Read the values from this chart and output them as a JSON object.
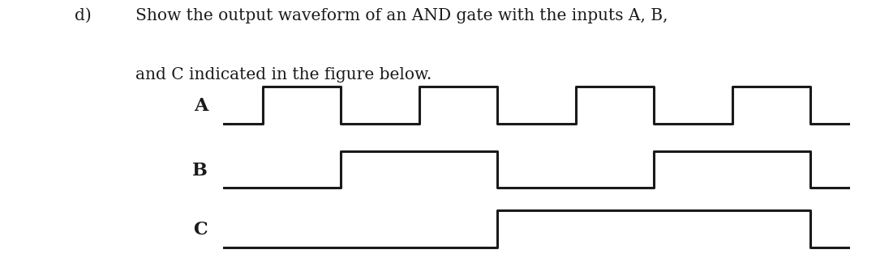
{
  "waveforms": {
    "A": {
      "times": [
        0,
        1,
        1,
        3,
        3,
        5,
        5,
        7,
        7,
        9,
        9,
        11,
        11,
        13,
        13,
        15,
        15,
        16
      ],
      "values": [
        0,
        0,
        1,
        1,
        0,
        0,
        1,
        1,
        0,
        0,
        1,
        1,
        0,
        0,
        1,
        1,
        0,
        0
      ]
    },
    "B": {
      "times": [
        0,
        3,
        3,
        7,
        7,
        11,
        11,
        15,
        15,
        16
      ],
      "values": [
        0,
        0,
        1,
        1,
        0,
        0,
        1,
        1,
        0,
        0
      ]
    },
    "C": {
      "times": [
        0,
        7,
        7,
        15,
        15,
        16
      ],
      "values": [
        0,
        0,
        1,
        1,
        0,
        0
      ]
    }
  },
  "xlim": [
    0,
    16
  ],
  "labels": [
    "A",
    "B",
    "C"
  ],
  "label_fontsize": 16,
  "linewidth": 2.2,
  "line_color": "#1a1a1a",
  "bg_color": "#ffffff",
  "fig_width": 10.8,
  "fig_height": 3.19,
  "dpi": 100,
  "header_fontsize": 14.5,
  "header_line1": "Show the output waveform of an AND gate with the inputs A, B,",
  "header_line2": "and C indicated in the figure below.",
  "header_label": "d)"
}
